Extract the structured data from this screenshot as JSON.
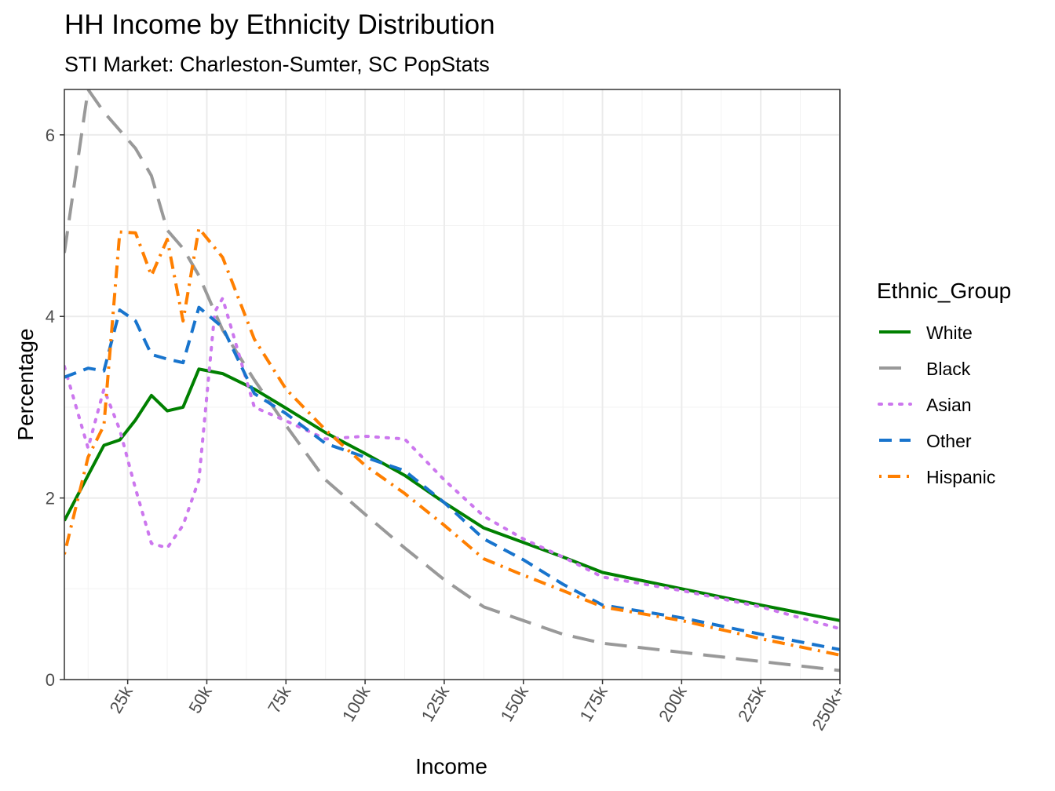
{
  "chart_data": {
    "type": "line",
    "title": "HH Income by Ethnicity Distribution",
    "subtitle": "STI Market: Charleston-Sumter, SC PopStats",
    "xlabel": "Income",
    "ylabel": "Percentage",
    "xlim": [
      5,
      250
    ],
    "ylim": [
      0,
      6.5
    ],
    "grid": true,
    "x_ticks": [
      {
        "value": 25,
        "label": "25k"
      },
      {
        "value": 50,
        "label": "50k"
      },
      {
        "value": 75,
        "label": "75k"
      },
      {
        "value": 100,
        "label": "100k"
      },
      {
        "value": 125,
        "label": "125k"
      },
      {
        "value": 150,
        "label": "150k"
      },
      {
        "value": 175,
        "label": "175k"
      },
      {
        "value": 200,
        "label": "200k"
      },
      {
        "value": 225,
        "label": "225k"
      },
      {
        "value": 250,
        "label": "250k+"
      }
    ],
    "y_ticks": [
      {
        "value": 0,
        "label": "0"
      },
      {
        "value": 2,
        "label": "2"
      },
      {
        "value": 4,
        "label": "4"
      },
      {
        "value": 6,
        "label": "6"
      }
    ],
    "legend_title": "Ethnic_Group",
    "legend_position": "right",
    "series": [
      {
        "name": "White",
        "color": "#008000",
        "dash": "solid",
        "points": [
          [
            5,
            1.75
          ],
          [
            12.5,
            2.25
          ],
          [
            17.5,
            2.58
          ],
          [
            22.5,
            2.64
          ],
          [
            27.5,
            2.86
          ],
          [
            32.5,
            3.13
          ],
          [
            37.5,
            2.96
          ],
          [
            42.5,
            3.0
          ],
          [
            47.5,
            3.42
          ],
          [
            55,
            3.37
          ],
          [
            65,
            3.2
          ],
          [
            75,
            2.99
          ],
          [
            87.5,
            2.72
          ],
          [
            100,
            2.49
          ],
          [
            112.5,
            2.25
          ],
          [
            125,
            1.95
          ],
          [
            137.5,
            1.67
          ],
          [
            150,
            1.51
          ],
          [
            162.5,
            1.35
          ],
          [
            175,
            1.18
          ],
          [
            200,
            1.0
          ],
          [
            225,
            0.82
          ],
          [
            250,
            0.65
          ]
        ]
      },
      {
        "name": "Black",
        "color": "#999999",
        "dash": "longdash",
        "points": [
          [
            5,
            4.7
          ],
          [
            12.5,
            6.5
          ],
          [
            17.5,
            6.25
          ],
          [
            22.5,
            6.05
          ],
          [
            27.5,
            5.85
          ],
          [
            32.5,
            5.55
          ],
          [
            37.5,
            4.95
          ],
          [
            42.5,
            4.75
          ],
          [
            47.5,
            4.45
          ],
          [
            55,
            3.85
          ],
          [
            65,
            3.3
          ],
          [
            75,
            2.8
          ],
          [
            87.5,
            2.2
          ],
          [
            100,
            1.82
          ],
          [
            112.5,
            1.45
          ],
          [
            125,
            1.1
          ],
          [
            137.5,
            0.8
          ],
          [
            150,
            0.65
          ],
          [
            162.5,
            0.5
          ],
          [
            175,
            0.4
          ],
          [
            200,
            0.3
          ],
          [
            225,
            0.2
          ],
          [
            250,
            0.1
          ]
        ]
      },
      {
        "name": "Asian",
        "color": "#CC77EE",
        "dash": "dotted",
        "points": [
          [
            5,
            3.45
          ],
          [
            12.5,
            2.55
          ],
          [
            17.5,
            3.2
          ],
          [
            22.5,
            2.75
          ],
          [
            27.5,
            2.1
          ],
          [
            32.5,
            1.5
          ],
          [
            37.5,
            1.45
          ],
          [
            42.5,
            1.7
          ],
          [
            47.5,
            2.2
          ],
          [
            52.5,
            4.05
          ],
          [
            55,
            4.2
          ],
          [
            65,
            3.0
          ],
          [
            75,
            2.85
          ],
          [
            87.5,
            2.65
          ],
          [
            100,
            2.68
          ],
          [
            112.5,
            2.65
          ],
          [
            125,
            2.2
          ],
          [
            137.5,
            1.8
          ],
          [
            150,
            1.55
          ],
          [
            162.5,
            1.35
          ],
          [
            175,
            1.13
          ],
          [
            200,
            0.98
          ],
          [
            225,
            0.8
          ],
          [
            250,
            0.56
          ]
        ]
      },
      {
        "name": "Other",
        "color": "#1874CD",
        "dash": "dashed",
        "points": [
          [
            5,
            3.33
          ],
          [
            12.5,
            3.43
          ],
          [
            17.5,
            3.4
          ],
          [
            22.5,
            4.07
          ],
          [
            27.5,
            3.95
          ],
          [
            32.5,
            3.58
          ],
          [
            37.5,
            3.53
          ],
          [
            42.5,
            3.49
          ],
          [
            47.5,
            4.1
          ],
          [
            55,
            3.88
          ],
          [
            65,
            3.15
          ],
          [
            75,
            2.93
          ],
          [
            87.5,
            2.6
          ],
          [
            100,
            2.45
          ],
          [
            112.5,
            2.3
          ],
          [
            125,
            1.95
          ],
          [
            137.5,
            1.55
          ],
          [
            150,
            1.32
          ],
          [
            162.5,
            1.05
          ],
          [
            175,
            0.82
          ],
          [
            200,
            0.68
          ],
          [
            225,
            0.5
          ],
          [
            250,
            0.33
          ]
        ]
      },
      {
        "name": "Hispanic",
        "color": "#FF7F00",
        "dash": "dotdash",
        "points": [
          [
            5,
            1.38
          ],
          [
            12.5,
            2.45
          ],
          [
            17.5,
            2.8
          ],
          [
            22.5,
            4.93
          ],
          [
            27.5,
            4.92
          ],
          [
            32.5,
            4.45
          ],
          [
            37.5,
            4.85
          ],
          [
            42.5,
            3.95
          ],
          [
            47.5,
            4.97
          ],
          [
            55,
            4.65
          ],
          [
            65,
            3.75
          ],
          [
            75,
            3.2
          ],
          [
            87.5,
            2.75
          ],
          [
            100,
            2.36
          ],
          [
            112.5,
            2.05
          ],
          [
            125,
            1.7
          ],
          [
            137.5,
            1.33
          ],
          [
            150,
            1.15
          ],
          [
            162.5,
            0.98
          ],
          [
            175,
            0.8
          ],
          [
            200,
            0.65
          ],
          [
            225,
            0.45
          ],
          [
            250,
            0.27
          ]
        ]
      }
    ]
  }
}
